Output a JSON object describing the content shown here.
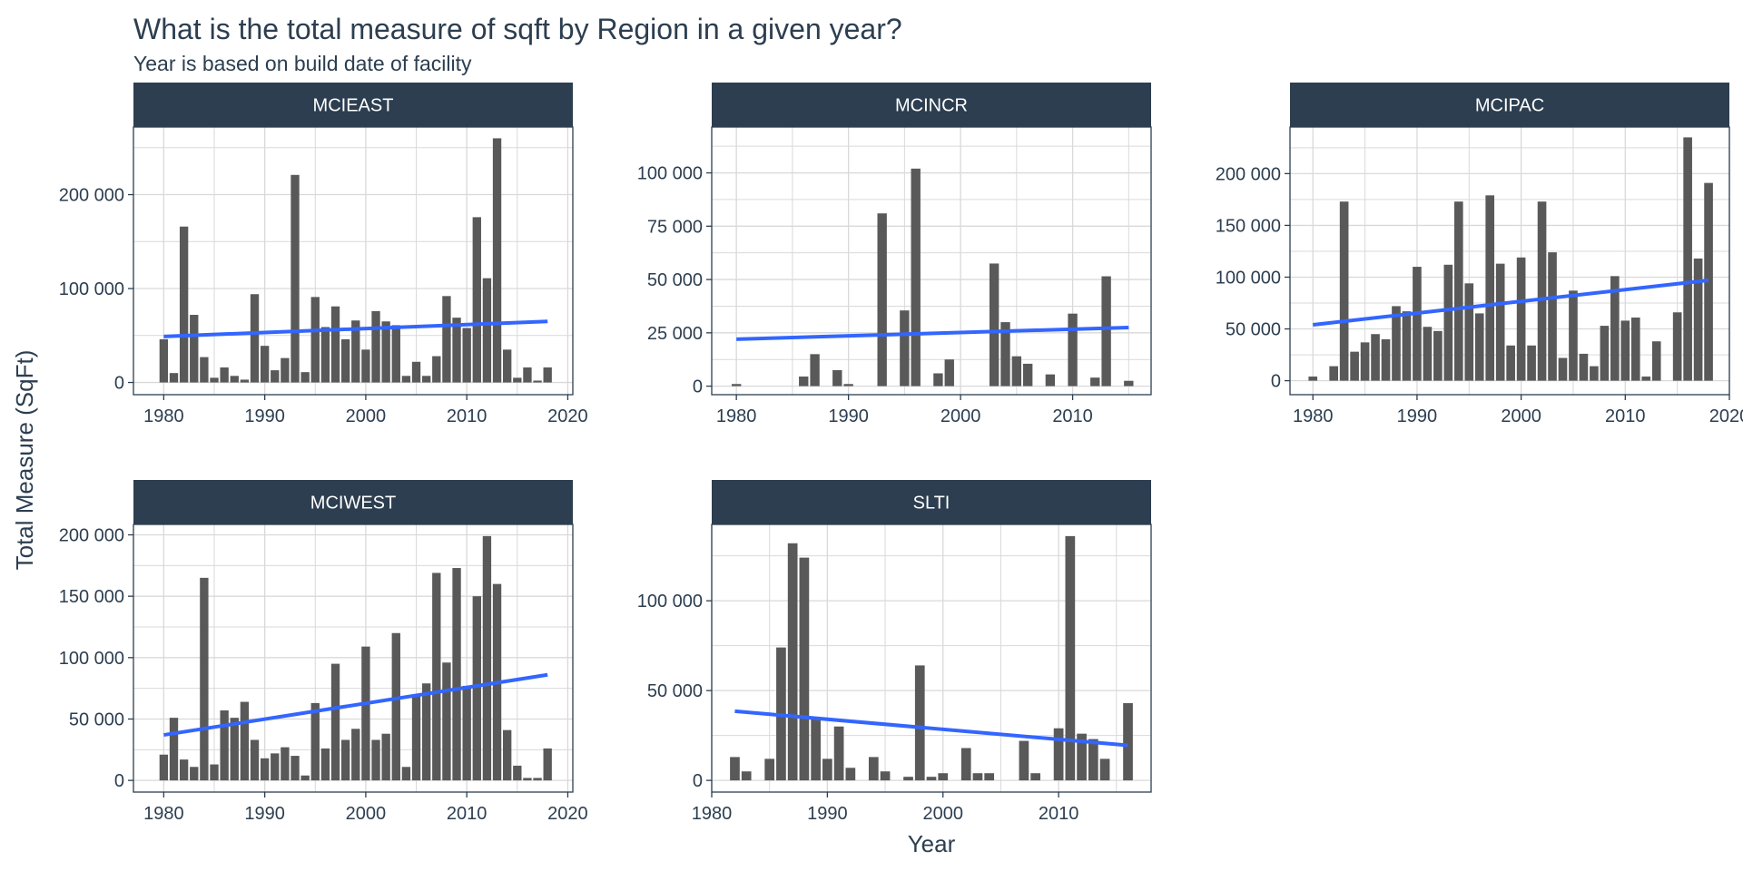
{
  "title": "What is the total measure of sqft by Region in a given year?",
  "subtitle": "Year is based on build date of facility",
  "colors": {
    "strip": "#2c3e50",
    "strip_text": "#ffffff",
    "bar": "#595959",
    "trend": "#3366ff",
    "grid": "#d9d9d9",
    "axis_text": "#2c3e50"
  },
  "chart_data": {
    "type": "bar",
    "xlabel": "Year",
    "ylabel": "Total Measure (SqFt)",
    "grid": true,
    "trend_line": "linear",
    "panels": [
      {
        "name": "MCIEAST",
        "xlim": [
          1977,
          2020.5
        ],
        "ylim": [
          -13000,
          272000
        ],
        "x_ticks": [
          1980,
          1990,
          2000,
          2010,
          2020
        ],
        "y_ticks": [
          0,
          100000,
          200000
        ],
        "y_tick_labels": [
          "0",
          "100 000",
          "200 000"
        ],
        "x": [
          1980,
          1981,
          1982,
          1983,
          1984,
          1985,
          1986,
          1987,
          1988,
          1989,
          1990,
          1991,
          1992,
          1993,
          1994,
          1995,
          1996,
          1997,
          1998,
          1999,
          2000,
          2001,
          2002,
          2003,
          2004,
          2005,
          2006,
          2007,
          2008,
          2009,
          2010,
          2011,
          2012,
          2013,
          2014,
          2015,
          2016,
          2017,
          2018
        ],
        "values": [
          46000,
          10000,
          166000,
          72000,
          27000,
          5000,
          16000,
          7000,
          3000,
          94000,
          39000,
          13000,
          26000,
          221000,
          11000,
          91000,
          59000,
          81000,
          46000,
          66000,
          35000,
          76000,
          65000,
          61000,
          7000,
          22000,
          7000,
          28000,
          92000,
          69000,
          58000,
          176000,
          111000,
          260000,
          35000,
          5000,
          16000,
          2000,
          16000
        ],
        "trend": [
          [
            1980,
            49000
          ],
          [
            2018,
            65000
          ]
        ]
      },
      {
        "name": "MCINCR",
        "xlim": [
          1977.8,
          2017
        ],
        "ylim": [
          -4000,
          121500
        ],
        "x_ticks": [
          1980,
          1990,
          2000,
          2010
        ],
        "y_ticks": [
          0,
          25000,
          50000,
          75000,
          100000
        ],
        "y_tick_labels": [
          "0",
          "25 000",
          "50 000",
          "75 000",
          "100 000"
        ],
        "x": [
          1980,
          1986,
          1987,
          1989,
          1990,
          1993,
          1995,
          1996,
          1998,
          1999,
          2003,
          2004,
          2005,
          2006,
          2008,
          2010,
          2012,
          2013,
          2015
        ],
        "values": [
          1000,
          4500,
          15000,
          7500,
          1000,
          81000,
          35500,
          102000,
          6000,
          12500,
          57500,
          30000,
          14000,
          10500,
          5500,
          34000,
          4000,
          51500,
          2500
        ],
        "trend": [
          [
            1980,
            22000
          ],
          [
            2015,
            27500
          ]
        ]
      },
      {
        "name": "MCIPAC",
        "xlim": [
          1977.8,
          2020
        ],
        "ylim": [
          -13500,
          245000
        ],
        "x_ticks": [
          1980,
          1990,
          2000,
          2010,
          2020
        ],
        "y_ticks": [
          0,
          50000,
          100000,
          150000,
          200000
        ],
        "y_tick_labels": [
          "0",
          "50 000",
          "100 000",
          "150 000",
          "200 000"
        ],
        "x": [
          1980,
          1982,
          1983,
          1984,
          1985,
          1986,
          1987,
          1988,
          1989,
          1990,
          1991,
          1992,
          1993,
          1994,
          1995,
          1996,
          1997,
          1998,
          1999,
          2000,
          2001,
          2002,
          2003,
          2004,
          2005,
          2006,
          2007,
          2008,
          2009,
          2010,
          2011,
          2012,
          2013,
          2015,
          2016,
          2017,
          2018
        ],
        "values": [
          4000,
          14000,
          173000,
          28000,
          37000,
          45000,
          40000,
          72000,
          67000,
          110000,
          52000,
          48000,
          112000,
          173000,
          94000,
          65000,
          179000,
          113000,
          34000,
          119000,
          34000,
          173000,
          124000,
          22000,
          87000,
          26000,
          14000,
          53000,
          101000,
          58000,
          61000,
          4000,
          38000,
          66000,
          235000,
          118000,
          191000
        ],
        "trend": [
          [
            1980,
            54000
          ],
          [
            2018,
            97000
          ]
        ]
      },
      {
        "name": "MCIWEST",
        "xlim": [
          1977,
          2020.5
        ],
        "ylim": [
          -9500,
          208500
        ],
        "x_ticks": [
          1980,
          1990,
          2000,
          2010,
          2020
        ],
        "y_ticks": [
          0,
          50000,
          100000,
          150000,
          200000
        ],
        "y_tick_labels": [
          "0",
          "50 000",
          "100 000",
          "150 000",
          "200 000"
        ],
        "x": [
          1980,
          1981,
          1982,
          1983,
          1984,
          1985,
          1986,
          1987,
          1988,
          1989,
          1990,
          1991,
          1992,
          1993,
          1994,
          1995,
          1996,
          1997,
          1998,
          1999,
          2000,
          2001,
          2002,
          2003,
          2004,
          2005,
          2006,
          2007,
          2008,
          2009,
          2010,
          2011,
          2012,
          2013,
          2014,
          2015,
          2016,
          2017,
          2018
        ],
        "values": [
          21000,
          51000,
          17000,
          11000,
          165000,
          13000,
          57000,
          51000,
          64000,
          33000,
          18000,
          22000,
          27000,
          20000,
          4000,
          63000,
          26000,
          95000,
          33000,
          42000,
          109000,
          33000,
          38000,
          120000,
          11000,
          69000,
          79000,
          169000,
          96000,
          173000,
          77000,
          150000,
          199000,
          160000,
          41000,
          12000,
          2000,
          2000,
          26000
        ],
        "trend": [
          [
            1980,
            37000
          ],
          [
            2018,
            86000
          ]
        ]
      },
      {
        "name": "SLTI",
        "xlim": [
          1980,
          2018
        ],
        "ylim": [
          -6500,
          142500
        ],
        "x_ticks": [
          1980,
          1990,
          2000,
          2010
        ],
        "y_ticks": [
          0,
          50000,
          100000
        ],
        "y_tick_labels": [
          "0",
          "50 000",
          "100 000"
        ],
        "x": [
          1982,
          1983,
          1985,
          1986,
          1987,
          1988,
          1989,
          1990,
          1991,
          1992,
          1994,
          1995,
          1997,
          1998,
          1999,
          2000,
          2002,
          2003,
          2004,
          2007,
          2008,
          2010,
          2011,
          2012,
          2013,
          2014,
          2016
        ],
        "values": [
          13000,
          5000,
          12000,
          74000,
          132000,
          124000,
          34000,
          12000,
          30000,
          7000,
          13000,
          5000,
          2000,
          64000,
          2000,
          4000,
          18000,
          4000,
          4000,
          22000,
          4000,
          29000,
          136000,
          26000,
          23000,
          12000,
          43000
        ],
        "trend": [
          [
            1982,
            38500
          ],
          [
            2016,
            19500
          ]
        ]
      }
    ]
  }
}
